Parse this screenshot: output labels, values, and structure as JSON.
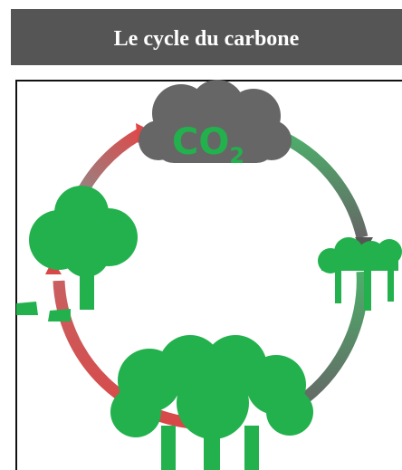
{
  "header": {
    "title": "Le cycle du carbone"
  },
  "cloud": {
    "label": "CO",
    "subscript": "2"
  }
}
